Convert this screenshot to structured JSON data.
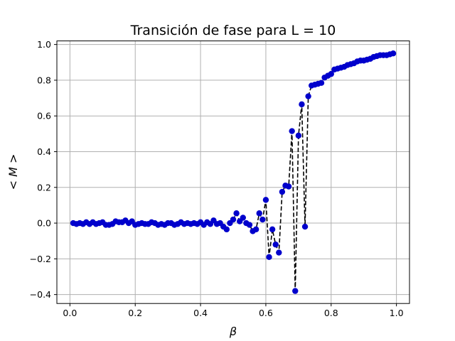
{
  "chart_data": {
    "type": "line",
    "title": "Transición de fase para L = 10",
    "xlabel": "β",
    "ylabel": "< M >",
    "xlim": [
      -0.04,
      1.04
    ],
    "ylim": [
      -0.45,
      1.02
    ],
    "xticks": [
      0.0,
      0.2,
      0.4,
      0.6,
      0.8,
      1.0
    ],
    "xtick_labels": [
      "0.0",
      "0.2",
      "0.4",
      "0.6",
      "0.8",
      "1.0"
    ],
    "yticks": [
      -0.4,
      -0.2,
      0.0,
      0.2,
      0.4,
      0.6,
      0.8,
      1.0
    ],
    "ytick_labels": [
      "−0.4",
      "−0.2",
      "0.0",
      "0.2",
      "0.4",
      "0.6",
      "0.8",
      "1.0"
    ],
    "grid": true,
    "line_color": "#000000",
    "marker_color": "#0000cc",
    "series": [
      {
        "x": [
          0.01,
          0.02,
          0.03,
          0.04,
          0.05,
          0.06,
          0.07,
          0.08,
          0.09,
          0.1,
          0.11,
          0.12,
          0.13,
          0.14,
          0.15,
          0.16,
          0.17,
          0.18,
          0.19,
          0.2,
          0.21,
          0.22,
          0.23,
          0.24,
          0.25,
          0.26,
          0.27,
          0.28,
          0.29,
          0.3,
          0.31,
          0.32,
          0.33,
          0.34,
          0.35,
          0.36,
          0.37,
          0.38,
          0.39,
          0.4,
          0.41,
          0.42,
          0.43,
          0.44,
          0.45,
          0.46,
          0.47,
          0.48,
          0.49,
          0.5,
          0.51,
          0.52,
          0.53,
          0.54,
          0.55,
          0.56,
          0.57,
          0.58,
          0.59,
          0.6,
          0.61,
          0.62,
          0.63,
          0.64,
          0.65,
          0.66,
          0.67,
          0.68,
          0.69,
          0.7,
          0.71,
          0.72,
          0.73,
          0.74,
          0.75,
          0.76,
          0.77,
          0.78,
          0.79,
          0.8,
          0.81,
          0.82,
          0.83,
          0.84,
          0.85,
          0.86,
          0.87,
          0.88,
          0.89,
          0.9,
          0.91,
          0.92,
          0.93,
          0.94,
          0.95,
          0.96,
          0.97,
          0.98,
          0.99
        ],
        "values": [
          0.0,
          -0.005,
          0.0,
          -0.005,
          0.005,
          -0.005,
          0.005,
          -0.005,
          0.0,
          0.005,
          -0.01,
          -0.01,
          -0.005,
          0.01,
          0.005,
          0.005,
          0.015,
          0.0,
          0.01,
          -0.01,
          -0.005,
          0.0,
          -0.005,
          -0.005,
          0.005,
          0.0,
          -0.01,
          -0.005,
          -0.01,
          0.0,
          0.0,
          -0.01,
          -0.005,
          0.005,
          -0.005,
          0.0,
          -0.005,
          0.0,
          -0.005,
          0.005,
          -0.01,
          0.005,
          -0.005,
          0.015,
          -0.005,
          0.0,
          -0.02,
          -0.035,
          0.0,
          0.02,
          0.055,
          0.01,
          0.03,
          0.0,
          -0.01,
          -0.045,
          -0.035,
          0.055,
          0.02,
          0.13,
          -0.19,
          -0.035,
          -0.12,
          -0.165,
          0.175,
          0.21,
          0.205,
          0.515,
          -0.38,
          0.49,
          0.665,
          -0.02,
          0.71,
          0.77,
          0.775,
          0.78,
          0.785,
          0.815,
          0.825,
          0.835,
          0.86,
          0.865,
          0.87,
          0.875,
          0.885,
          0.89,
          0.895,
          0.905,
          0.91,
          0.91,
          0.915,
          0.92,
          0.93,
          0.935,
          0.94,
          0.94,
          0.94,
          0.945,
          0.95
        ]
      }
    ]
  }
}
